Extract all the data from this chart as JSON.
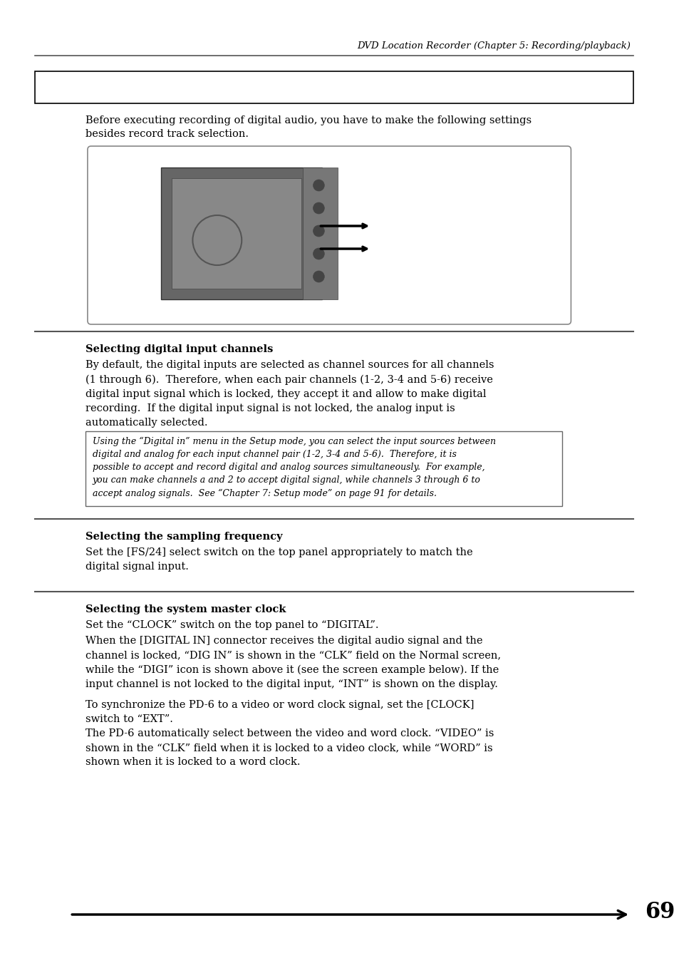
{
  "header_text": "DVD Location Recorder (Chapter 5: Recording/playback)",
  "page_number": "69",
  "bg_color": "#ffffff",
  "section1": {
    "box_text": "",
    "intro_text": "Before executing recording of digital audio, you have to make the following settings\nbesides record track selection."
  },
  "section2_title": "Selecting digital input channels",
  "section2_body": "By default, the digital inputs are selected as channel sources for all channels\n(1 through 6).  Therefore, when each pair channels (1-2, 3-4 and 5-6) receive\ndigital input signal which is locked, they accept it and allow to make digital\nrecording.  If the digital input signal is not locked, the analog input is\nautomatically selected.",
  "section2_note": "Using the “Digital in” menu in the Setup mode, you can select the input sources between\ndigital and analog for each input channel pair (1-2, 3-4 and 5-6).  Therefore, it is\npossible to accept and record digital and analog sources simultaneously.  For example,\nyou can make channels a and 2 to accept digital signal, while channels 3 through 6 to\naccept analog signals.  See “Chapter 7: Setup mode” on page 91 for details.",
  "section3_title": "Selecting the sampling frequency",
  "section3_body": "Set the [FS/24] select switch on the top panel appropriately to match the\ndigital signal input.",
  "section4_title": "Selecting the system master clock",
  "section4_body1": "Set the “CLOCK” switch on the top panel to “DIGITAL”.",
  "section4_body2": "When the [DIGITAL IN] connector receives the digital audio signal and the\nchannel is locked, “DIG IN” is shown in the “CLK” field on the Normal screen,\nwhile the “DIGI” icon is shown above it (see the screen example below). If the\ninput channel is not locked to the digital input, “INT” is shown on the display.",
  "section4_body3": "To synchronize the PD-6 to a video or word clock signal, set the [CLOCK]\nswitch to “EXT”.\nThe PD-6 automatically select between the video and word clock. “VIDEO” is\nshown in the “CLK” field when it is locked to a video clock, while “WORD” is\nshown when it is locked to a word clock."
}
